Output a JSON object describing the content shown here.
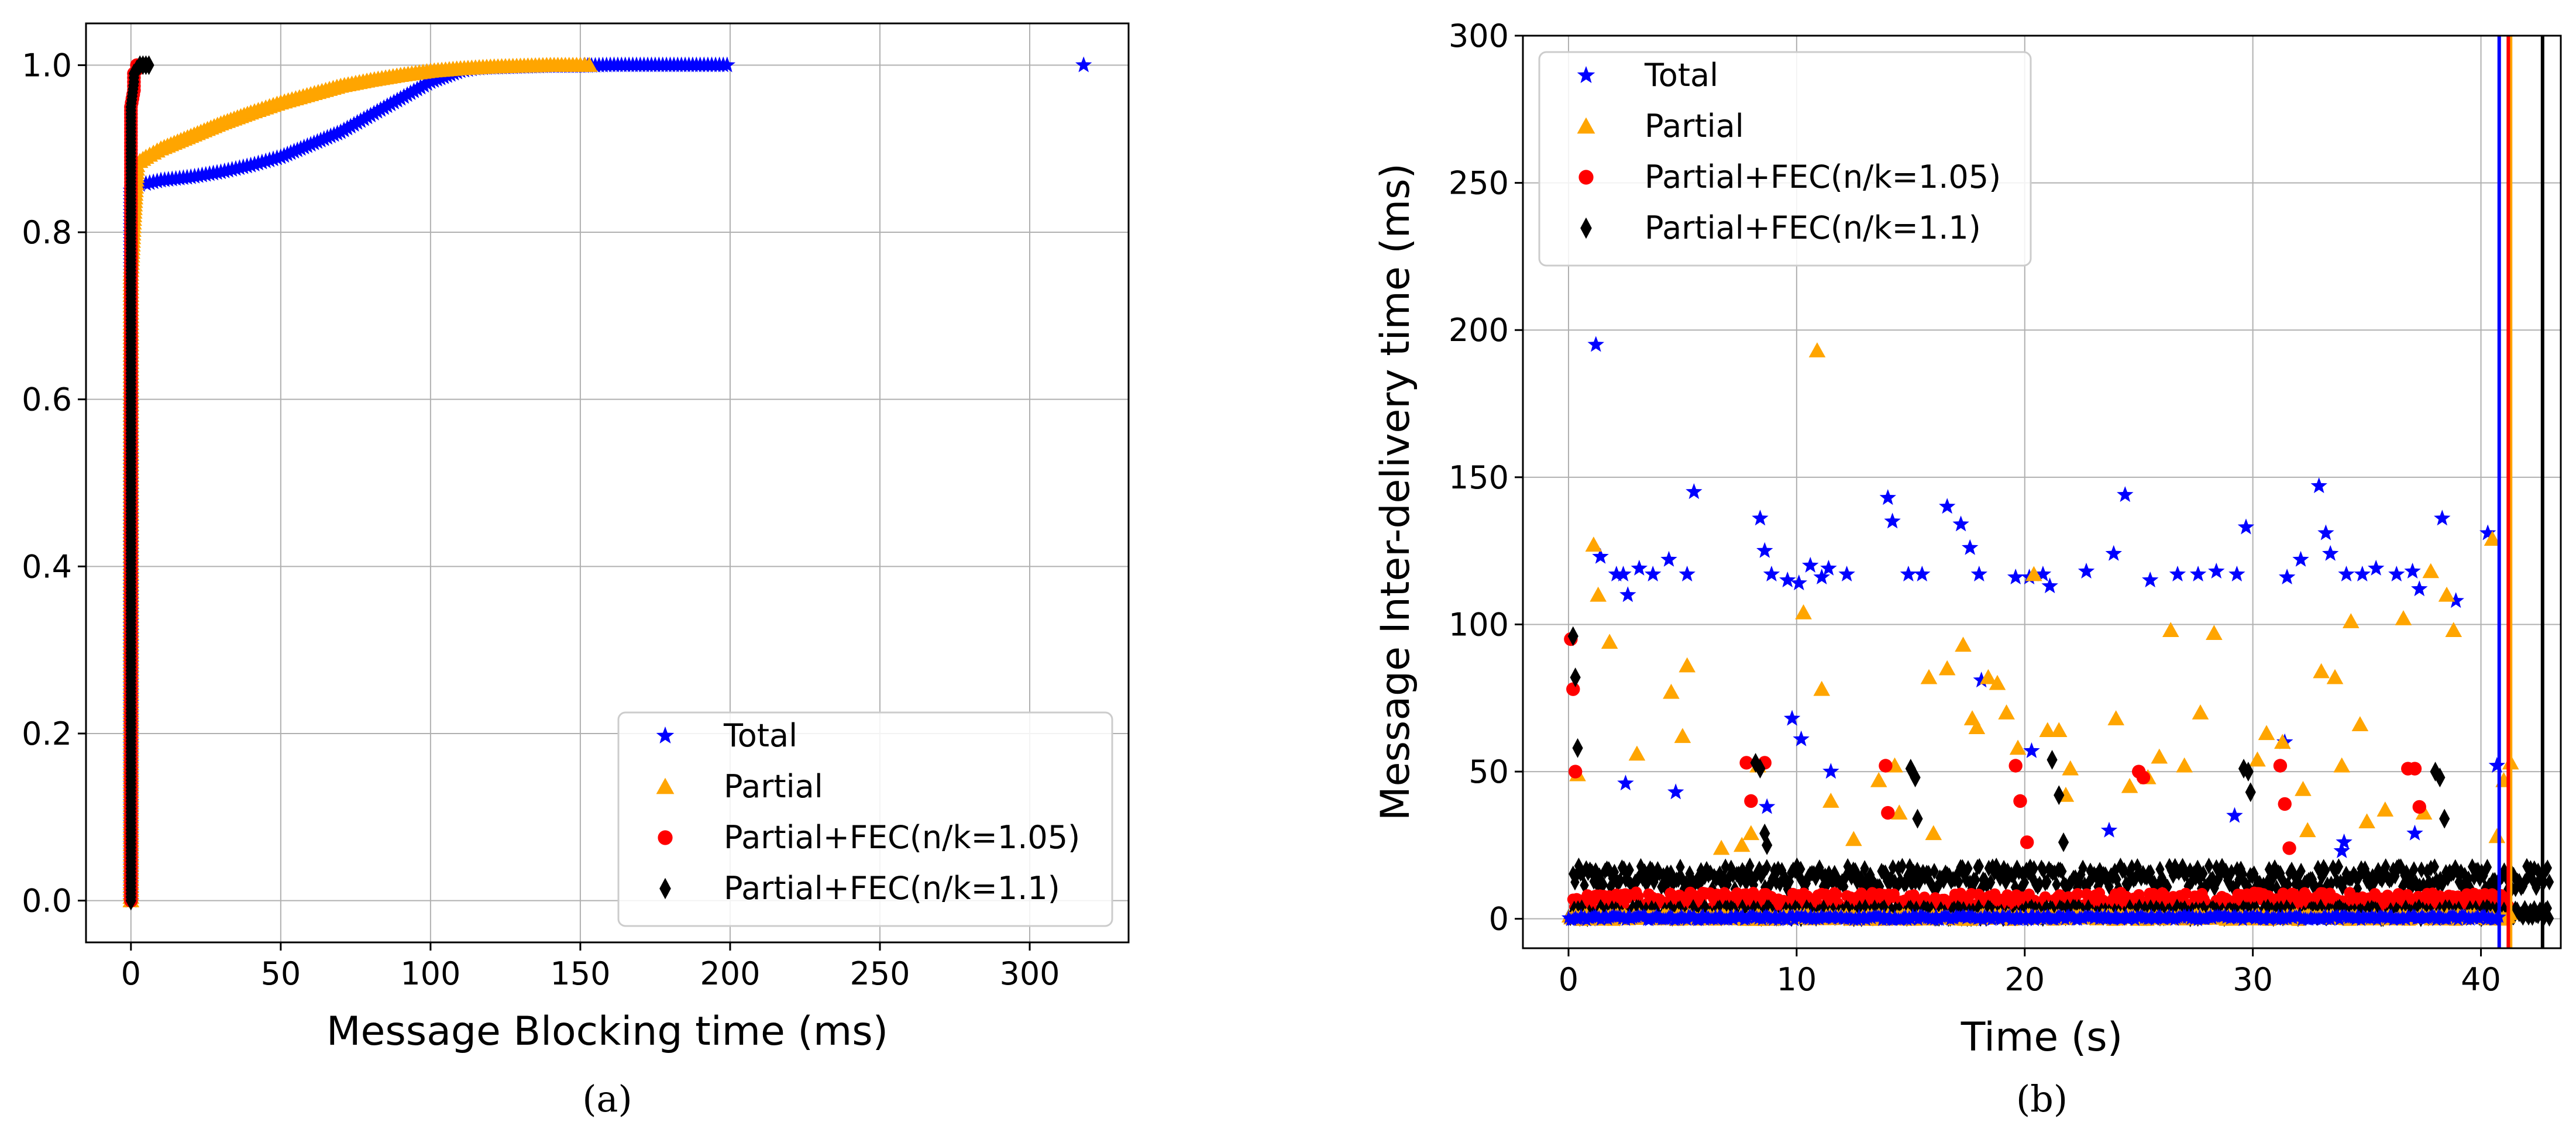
{
  "colors": {
    "total": "#0000ff",
    "partial": "#ffa500",
    "fec105": "#ff0000",
    "fec11": "#000000"
  },
  "chart_data": [
    {
      "type": "scatter",
      "panel": "(a)",
      "caption": "(a)",
      "title": "",
      "xlabel": "Message Blocking time (ms)",
      "ylabel": "",
      "xlim": [
        -15,
        333
      ],
      "ylim": [
        -0.05,
        1.05
      ],
      "xticks": [
        0,
        50,
        100,
        150,
        200,
        250,
        300
      ],
      "xtick_labels": [
        "0",
        "50",
        "100",
        "150",
        "200",
        "250",
        "300"
      ],
      "yticks": [
        0.0,
        0.2,
        0.4,
        0.6,
        0.8,
        1.0
      ],
      "ytick_labels": [
        "0.0",
        "0.2",
        "0.4",
        "0.6",
        "0.8",
        "1.0"
      ],
      "grid": true,
      "legend_position": "lower-right",
      "legend": [
        "Total",
        "Partial",
        "Partial+FEC(n/k=1.05)",
        "Partial+FEC(n/k=1.1)"
      ],
      "series": [
        {
          "name": "Total",
          "marker": "star",
          "x": [
            0,
            0,
            0,
            0,
            1,
            2,
            3,
            5,
            10,
            20,
            30,
            40,
            50,
            60,
            70,
            80,
            90,
            100,
            110,
            115,
            120,
            130,
            140,
            150,
            160,
            170,
            180,
            190,
            199,
            318
          ],
          "y": [
            0.0,
            0.3,
            0.6,
            0.85,
            0.855,
            0.856,
            0.857,
            0.858,
            0.862,
            0.866,
            0.872,
            0.88,
            0.89,
            0.905,
            0.92,
            0.94,
            0.96,
            0.98,
            0.993,
            0.996,
            0.997,
            0.998,
            0.999,
            0.999,
            1.0,
            1.0,
            1.0,
            1.0,
            1.0,
            1.0
          ]
        },
        {
          "name": "Partial",
          "marker": "triangle",
          "x": [
            0,
            0,
            0,
            1,
            2,
            3,
            5,
            10,
            20,
            30,
            40,
            50,
            60,
            70,
            80,
            90,
            100,
            110,
            120,
            130,
            140,
            150,
            153
          ],
          "y": [
            0.0,
            0.4,
            0.75,
            0.82,
            0.88,
            0.885,
            0.89,
            0.9,
            0.915,
            0.93,
            0.943,
            0.955,
            0.965,
            0.975,
            0.982,
            0.988,
            0.993,
            0.996,
            0.998,
            0.999,
            1.0,
            1.0,
            1.0
          ]
        },
        {
          "name": "Partial+FEC(n/k=1.05)",
          "marker": "circle",
          "x": [
            0,
            0,
            0,
            0,
            0,
            1,
            1,
            1,
            2,
            2
          ],
          "y": [
            0.0,
            0.2,
            0.5,
            0.8,
            0.95,
            0.97,
            0.98,
            0.99,
            0.995,
            1.0
          ]
        },
        {
          "name": "Partial+FEC(n/k=1.1)",
          "marker": "diamond",
          "x": [
            0,
            0,
            0,
            0,
            0,
            1,
            1,
            2,
            3,
            4,
            5,
            6
          ],
          "y": [
            0.0,
            0.25,
            0.5,
            0.75,
            0.95,
            0.98,
            0.99,
            0.995,
            1.0,
            1.0,
            1.0,
            1.0
          ]
        }
      ]
    },
    {
      "type": "scatter",
      "panel": "(b)",
      "caption": "(b)",
      "title": "",
      "xlabel": "Time (s)",
      "ylabel": "Message Inter-delivery time (ms)",
      "xlim": [
        -2,
        43.5
      ],
      "ylim": [
        -10,
        300
      ],
      "xticks": [
        0,
        10,
        20,
        30,
        40
      ],
      "xtick_labels": [
        "0",
        "10",
        "20",
        "30",
        "40"
      ],
      "yticks": [
        0,
        50,
        100,
        150,
        200,
        250,
        300
      ],
      "ytick_labels": [
        "0",
        "50",
        "100",
        "150",
        "200",
        "250",
        "300"
      ],
      "grid": true,
      "legend_position": "upper-left",
      "legend": [
        "Total",
        "Partial",
        "Partial+FEC(n/k=1.05)",
        "Partial+FEC(n/k=1.1)"
      ],
      "vertical_lines": [
        {
          "series": "Total",
          "x": 40.8
        },
        {
          "series": "Partial",
          "x": 41.3
        },
        {
          "series": "Partial+FEC(n/k=1.05)",
          "x": 41.2
        },
        {
          "series": "Partial+FEC(n/k=1.1)",
          "x": 42.7
        }
      ],
      "series": [
        {
          "name": "Total",
          "marker": "star",
          "x": [
            1.2,
            1.4,
            2.1,
            2.4,
            2.6,
            3.1,
            3.7,
            4.4,
            5.5,
            5.2,
            8.4,
            8.6,
            8.9,
            9.6,
            10.1,
            10.6,
            11.1,
            11.4,
            12.2,
            14.0,
            14.2,
            14.9,
            15.5,
            16.6,
            17.2,
            17.6,
            18.0,
            19.6,
            20.2,
            20.8,
            21.1,
            22.7,
            23.9,
            24.4,
            25.5,
            26.7,
            27.6,
            28.4,
            29.3,
            29.7,
            31.5,
            32.1,
            32.9,
            33.2,
            33.4,
            34.1,
            34.8,
            35.4,
            36.3,
            37.0,
            37.3,
            38.3,
            38.9,
            40.3,
            40.7,
            2.5,
            4.7,
            8.7,
            9.8,
            10.2,
            11.5,
            18.1,
            20.3,
            23.7,
            29.2,
            31.4,
            34.0,
            37.1,
            33.9
          ],
          "y": [
            195,
            123,
            117,
            117,
            110,
            119,
            117,
            122,
            145,
            117,
            136,
            125,
            117,
            115,
            114,
            120,
            116,
            119,
            117,
            143,
            135,
            117,
            117,
            140,
            134,
            126,
            117,
            116,
            116,
            117,
            113,
            118,
            124,
            144,
            115,
            117,
            117,
            118,
            117,
            133,
            116,
            122,
            147,
            131,
            124,
            117,
            117,
            119,
            117,
            118,
            112,
            136,
            108,
            131,
            52,
            46,
            43,
            38,
            68,
            61,
            50,
            81,
            57,
            30,
            35,
            60,
            26,
            29,
            23
          ]
        },
        {
          "name": "Partial",
          "marker": "triangle",
          "x": [
            0.4,
            1.1,
            1.3,
            1.8,
            3.0,
            4.5,
            5.0,
            5.2,
            6.7,
            7.6,
            8.0,
            8.3,
            10.3,
            10.9,
            11.1,
            11.5,
            13.6,
            14.3,
            15.8,
            16.6,
            17.3,
            17.7,
            17.9,
            18.4,
            18.8,
            19.2,
            19.7,
            20.4,
            21.0,
            21.5,
            22.0,
            24.0,
            24.6,
            25.4,
            26.4,
            27.0,
            27.7,
            28.3,
            30.2,
            30.6,
            31.3,
            32.4,
            33.0,
            33.6,
            33.9,
            34.3,
            34.7,
            35.8,
            36.6,
            37.8,
            38.5,
            38.8,
            40.5,
            41.0,
            41.3,
            12.5,
            14.5,
            16.0,
            21.8,
            25.9,
            32.2,
            35.0,
            37.5,
            40.7
          ],
          "y": [
            49,
            127,
            110,
            94,
            56,
            77,
            62,
            86,
            24,
            25,
            29,
            52,
            104,
            193,
            78,
            40,
            47,
            52,
            82,
            85,
            93,
            68,
            65,
            82,
            80,
            70,
            58,
            117,
            64,
            64,
            51,
            68,
            45,
            48,
            98,
            52,
            70,
            97,
            54,
            63,
            60,
            30,
            84,
            82,
            52,
            101,
            66,
            37,
            102,
            118,
            110,
            98,
            129,
            47,
            53,
            27,
            36,
            29,
            42,
            55,
            44,
            33,
            36,
            28
          ]
        },
        {
          "name": "Partial+FEC(n/k=1.05)",
          "marker": "circle",
          "x": [
            0.1,
            0.2,
            0.3,
            7.8,
            8.0,
            8.6,
            13.9,
            14.0,
            19.6,
            19.8,
            20.1,
            25.0,
            25.2,
            31.2,
            31.4,
            31.6,
            36.8,
            37.1,
            37.3
          ],
          "y": [
            95,
            78,
            50,
            53,
            40,
            53,
            52,
            36,
            52,
            40,
            26,
            50,
            48,
            52,
            39,
            24,
            51,
            51,
            38
          ]
        },
        {
          "name": "Partial+FEC(n/k=1.1)",
          "marker": "diamond",
          "x": [
            0.2,
            0.3,
            0.4,
            8.2,
            8.4,
            8.6,
            8.7,
            15.0,
            15.2,
            15.3,
            21.2,
            21.5,
            21.7,
            29.6,
            29.8,
            29.9,
            38.0,
            38.2,
            38.4
          ],
          "y": [
            96,
            82,
            58,
            53,
            51,
            29,
            25,
            51,
            48,
            34,
            54,
            42,
            26,
            51,
            50,
            43,
            50,
            48,
            34
          ]
        }
      ],
      "dense_bands": [
        {
          "series": "Partial+FEC(n/k=1.1)",
          "x_start": 0.2,
          "x_end": 43.0,
          "y_center": 14,
          "y_spread": 4
        },
        {
          "series": "Partial+FEC(n/k=1.05)",
          "x_start": 0.2,
          "x_end": 41.2,
          "y_center": 6,
          "y_spread": 3
        },
        {
          "series": "Partial+FEC(n/k=1.1)",
          "x_start": 0.0,
          "x_end": 43.0,
          "y_center": 2,
          "y_spread": 2
        },
        {
          "series": "Partial",
          "x_start": 0.0,
          "x_end": 41.3,
          "y_center": 0.5,
          "y_spread": 1
        },
        {
          "series": "Total",
          "x_start": 0.0,
          "x_end": 40.8,
          "y_center": 0.3,
          "y_spread": 0.8
        }
      ]
    }
  ]
}
